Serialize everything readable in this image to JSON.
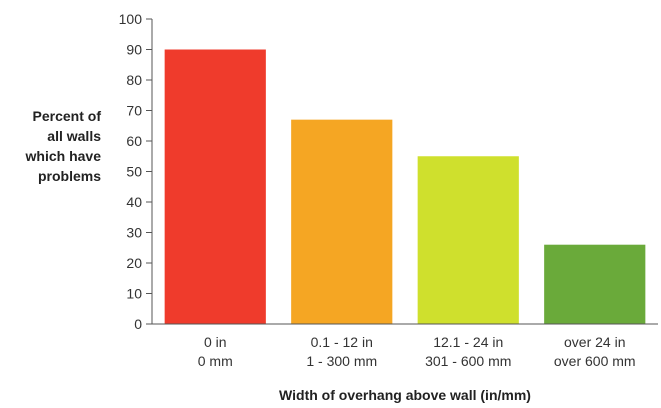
{
  "chart_data": {
    "type": "bar",
    "title": "",
    "ylabel_lines": [
      "Percent of",
      "all walls",
      "which have",
      "problems"
    ],
    "xlabel": "Width of overhang above wall (in/mm)",
    "ylim": [
      0,
      100
    ],
    "yticks": [
      "0",
      "10",
      "20",
      "30",
      "40",
      "50",
      "60",
      "70",
      "80",
      "90",
      "100"
    ],
    "grid": false,
    "categories": [
      {
        "line1": "0 in",
        "line2": "0 mm"
      },
      {
        "line1": "0.1 - 12 in",
        "line2": "1 - 300 mm"
      },
      {
        "line1": "12.1 - 24 in",
        "line2": "301 - 600 mm"
      },
      {
        "line1": "over 24 in",
        "line2": "over 600 mm"
      }
    ],
    "values": [
      90,
      67,
      55,
      26
    ],
    "colors": [
      "#ef3b2c",
      "#f5a623",
      "#cfe02d",
      "#6aaa3a"
    ]
  }
}
